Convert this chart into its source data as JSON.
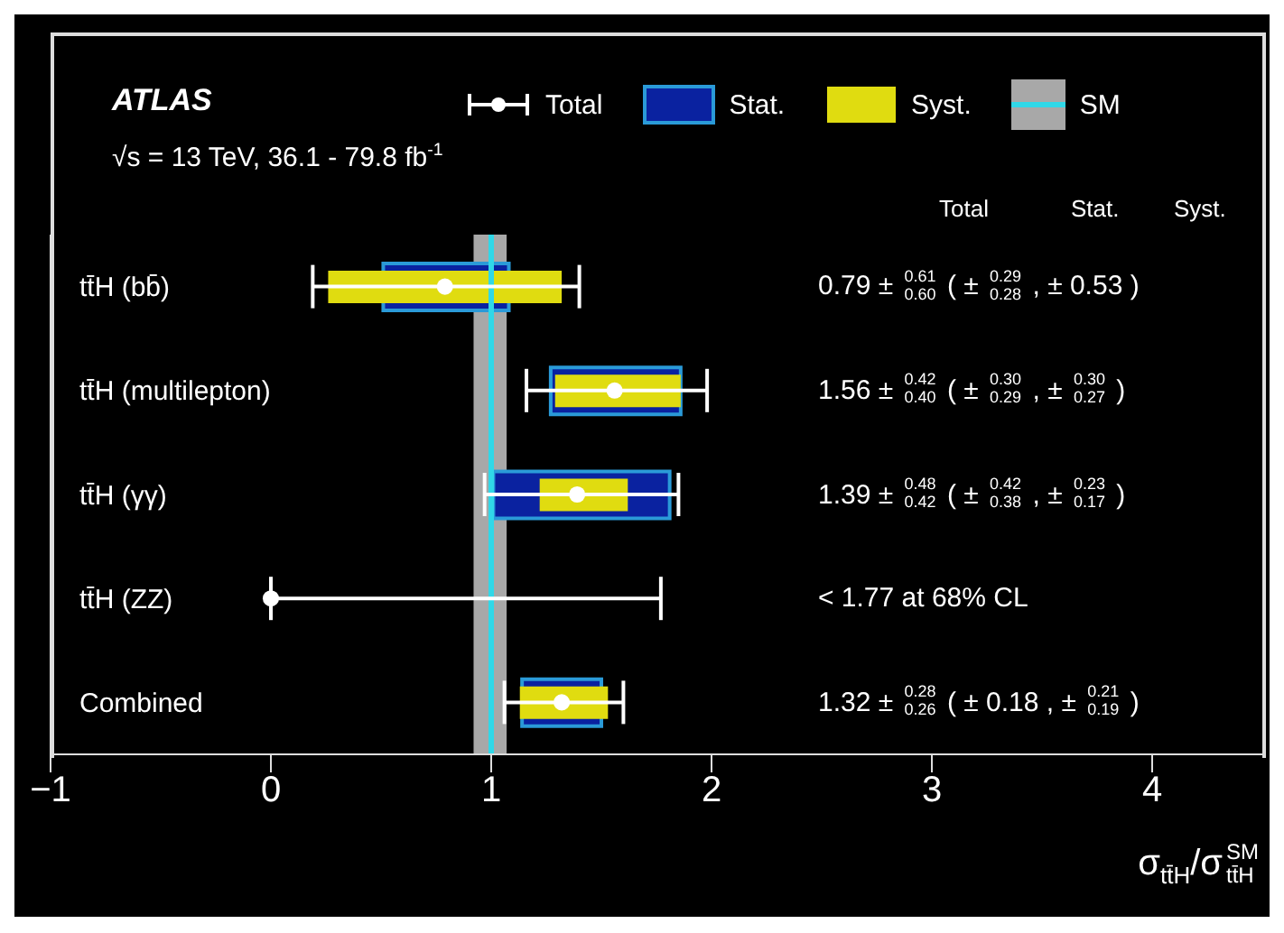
{
  "chart_data": {
    "type": "bar",
    "orientation": "horizontal",
    "title": "ATLAS",
    "subtitle": "√s = 13 TeV, 36.1 - 79.8 fb$^{-1}$",
    "xlabel": "σ$_{tt̄H}$/σ$^{SM}$$_{tt̄H}$",
    "categories": [
      "tt̄H (bb̄)",
      "tt̄H (multilepton)",
      "tt̄H (γγ)",
      "tt̄H (ZZ)",
      "Combined"
    ],
    "series": [
      {
        "name": "Total",
        "type": "scatter",
        "color": "#ffffff",
        "values": [
          0.79,
          1.56,
          1.39,
          0,
          1.32
        ],
        "errors": [
          [
            0.19,
            1.4
          ],
          [
            1.16,
            1.98
          ],
          [
            0.97,
            1.85
          ],
          [
            0,
            1.77
          ],
          [
            1.06,
            1.6
          ]
        ]
      },
      {
        "name": "Stat.",
        "type": "bar",
        "color": "#0a22a0",
        "base": [
          0.51,
          1.27,
          1.01,
          null,
          1.14
        ],
        "values": [
          0.57,
          0.59,
          0.8,
          null,
          0.36
        ]
      },
      {
        "name": "Syst.",
        "type": "bar",
        "color": "#e0dc10",
        "base": [
          0.26,
          1.29,
          1.22,
          null,
          1.13
        ],
        "values": [
          1.06,
          0.57,
          0.4,
          null,
          0.4
        ]
      }
    ],
    "bands": [
      {
        "axis": "x",
        "from": 0.92,
        "to": 1.07,
        "label": "SM",
        "color": "#a8a8a8"
      }
    ],
    "ref_lines": [
      {
        "axis": "x",
        "value": 1,
        "color": "#30d8e8"
      }
    ],
    "annotations": [
      "Total",
      "Stat.",
      "Syst.",
      "0.79 ± $^{0.61}$$_{0.60}$ ( ± $^{0.29}$$_{0.28}$ , ± 0.53 )",
      "1.56 ± $^{0.42}$$_{0.40}$ ( ± $^{0.30}$$_{0.29}$ , ± $^{0.30}$$_{0.27}$ )",
      "1.39 ± $^{0.48}$$_{0.42}$ ( ± $^{0.42}$$_{0.38}$ , ± $^{0.23}$$_{0.17}$ )",
      "< 1.77 at 68% CL",
      "1.32 ± $^{0.28}$$_{0.26}$ ( ± 0.18 , ± $^{0.21}$$_{0.19}$ )"
    ],
    "xlim": [
      -1,
      4.5
    ],
    "xticks": [
      -1,
      0,
      1,
      2,
      3,
      4
    ],
    "legend": "top"
  }
}
